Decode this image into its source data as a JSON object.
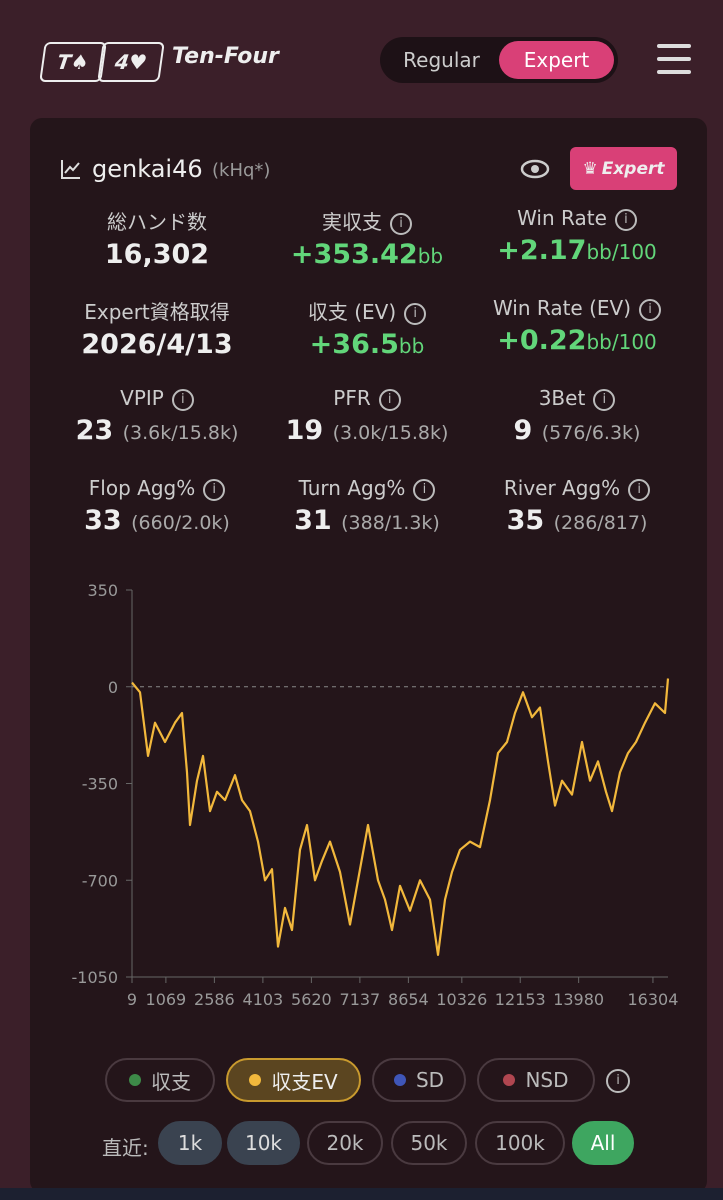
{
  "header": {
    "logo_cards": [
      "T♠",
      "4♥"
    ],
    "brand": "Ten-Four",
    "modes": [
      "Regular",
      "Expert"
    ]
  },
  "profile": {
    "name": "genkai46",
    "tag": "(kHq*)",
    "badge": "Expert"
  },
  "stats": [
    {
      "label": "総ハンド数",
      "value": "16,302"
    },
    {
      "label": "実収支",
      "value": "+353.42",
      "unit": "bb"
    },
    {
      "label": "Win Rate",
      "value": "+2.17",
      "unit": "bb/100"
    },
    {
      "label": "Expert資格取得",
      "value": "2026/4/13"
    },
    {
      "label": "収支 (EV)",
      "value": "+36.5",
      "unit": "bb"
    },
    {
      "label": "Win Rate (EV)",
      "value": "+0.22",
      "unit": "bb/100"
    },
    {
      "label": "VPIP",
      "value": "23",
      "detail": "(3.6k/15.8k)"
    },
    {
      "label": "PFR",
      "value": "19",
      "detail": "(3.0k/15.8k)"
    },
    {
      "label": "3Bet",
      "value": "9",
      "detail": "(576/6.3k)"
    },
    {
      "label": "Flop Agg%",
      "value": "33",
      "detail": "(660/2.0k)"
    },
    {
      "label": "Turn Agg%",
      "value": "31",
      "detail": "(388/1.3k)"
    },
    {
      "label": "River Agg%",
      "value": "35",
      "detail": "(286/817)"
    }
  ],
  "chart_data": {
    "type": "line",
    "x": [
      9,
      259,
      509,
      728,
      1041,
      1354,
      1573,
      1729,
      1823,
      2042,
      2230,
      2449,
      2668,
      2918,
      3231,
      3450,
      3700,
      3950,
      4169,
      4388,
      4576,
      4795,
      5014,
      5264,
      5483,
      5733,
      5952,
      6202,
      6515,
      6827,
      7078,
      7390,
      7703,
      7922,
      8141,
      8391,
      8704,
      9017,
      9330,
      9580,
      9799,
      10018,
      10268,
      10581,
      10894,
      11206,
      11457,
      11738,
      11989,
      12239,
      12520,
      12770,
      13021,
      13240,
      13459,
      13772,
      14084,
      14335,
      14585,
      14835,
      15023,
      15273,
      15524,
      15774,
      16056,
      16368,
      16681,
      16775
    ],
    "series": [
      {
        "name": "収支EV",
        "color": "#f2b83c",
        "values": [
          15,
          -20,
          -250,
          -130,
          -200,
          -130,
          -95,
          -310,
          -500,
          -340,
          -250,
          -450,
          -380,
          -410,
          -320,
          -410,
          -450,
          -560,
          -700,
          -660,
          -940,
          -800,
          -880,
          -590,
          -500,
          -700,
          -630,
          -560,
          -670,
          -860,
          -700,
          -500,
          -700,
          -770,
          -880,
          -720,
          -810,
          -700,
          -770,
          -970,
          -770,
          -670,
          -590,
          -560,
          -580,
          -410,
          -240,
          -200,
          -95,
          -20,
          -110,
          -75,
          -270,
          -430,
          -340,
          -390,
          -200,
          -340,
          -270,
          -380,
          -450,
          -310,
          -240,
          -200,
          -130,
          -60,
          -95,
          30
        ]
      }
    ],
    "xlim": [
      9,
      16775
    ],
    "xticks": [
      9,
      1069,
      2586,
      4103,
      5620,
      7137,
      8654,
      10326,
      12153,
      13980,
      16304
    ],
    "ylim": [
      -1050,
      350
    ],
    "yticks": [
      350,
      0,
      -350,
      -700,
      -1050
    ]
  },
  "filters": {
    "series_toggles": [
      "収支",
      "収支EV",
      "SD",
      "NSD"
    ],
    "range_label": "直近:",
    "ranges": [
      "1k",
      "10k",
      "20k",
      "50k",
      "100k",
      "All"
    ]
  }
}
